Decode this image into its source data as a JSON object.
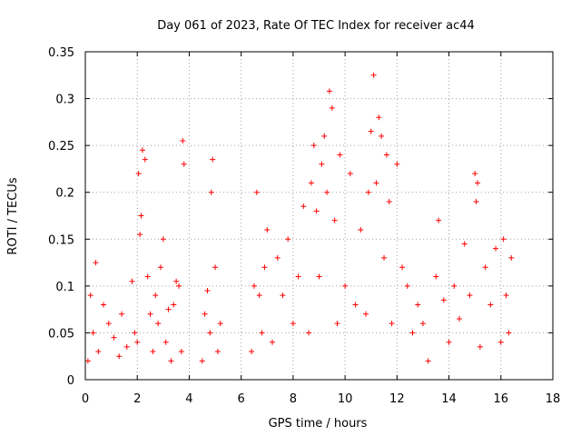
{
  "chart_data": {
    "type": "scatter",
    "title": "Day 061 of 2023, Rate Of TEC Index for receiver ac44",
    "xlabel": "GPS time / hours",
    "ylabel": "ROTI / TECUs",
    "xlim": [
      0,
      18
    ],
    "ylim": [
      0,
      0.35
    ],
    "x_ticks": [
      0,
      2,
      4,
      6,
      8,
      10,
      12,
      14,
      16,
      18
    ],
    "y_ticks": [
      0,
      0.05,
      0.1,
      0.15,
      0.2,
      0.25,
      0.3,
      0.35
    ],
    "x_tick_labels": [
      "0",
      "2",
      "4",
      "6",
      "8",
      "10",
      "12",
      "14",
      "16",
      "18"
    ],
    "y_tick_labels": [
      "0",
      "0.05",
      "0.1",
      "0.15",
      "0.2",
      "0.25",
      "0.3",
      "0.35"
    ],
    "grid": true,
    "marker": "+",
    "color": "#ff0000",
    "data_gaps_hours": [
      [
        3.9,
        4.4
      ],
      [
        5.3,
        6.3
      ]
    ],
    "series": [
      {
        "name": "ROTI",
        "x": [
          0.1,
          0.2,
          0.3,
          0.4,
          0.5,
          0.7,
          0.9,
          1.1,
          1.3,
          1.4,
          1.6,
          1.8,
          1.9,
          2.0,
          2.05,
          2.1,
          2.15,
          2.2,
          2.3,
          2.4,
          2.5,
          2.6,
          2.7,
          2.8,
          2.9,
          3.0,
          3.1,
          3.2,
          3.3,
          3.4,
          3.5,
          3.6,
          3.7,
          3.75,
          3.8,
          4.5,
          4.6,
          4.7,
          4.8,
          4.85,
          4.9,
          5.0,
          5.1,
          5.2,
          6.4,
          6.5,
          6.6,
          6.7,
          6.8,
          6.9,
          7.0,
          7.2,
          7.4,
          7.6,
          7.8,
          8.0,
          8.2,
          8.4,
          8.6,
          8.7,
          8.8,
          8.9,
          9.0,
          9.1,
          9.2,
          9.3,
          9.4,
          9.5,
          9.6,
          9.7,
          9.8,
          10.0,
          10.2,
          10.4,
          10.6,
          10.8,
          10.9,
          11.0,
          11.1,
          11.2,
          11.3,
          11.4,
          11.5,
          11.6,
          11.7,
          11.8,
          12.0,
          12.2,
          12.4,
          12.6,
          12.8,
          13.0,
          13.2,
          13.5,
          13.6,
          13.8,
          14.0,
          14.2,
          14.4,
          14.6,
          14.8,
          15.0,
          15.05,
          15.1,
          15.2,
          15.4,
          15.6,
          15.8,
          16.0,
          16.1,
          16.2,
          16.3,
          16.4
        ],
        "values": [
          0.02,
          0.09,
          0.05,
          0.125,
          0.03,
          0.08,
          0.06,
          0.045,
          0.025,
          0.07,
          0.035,
          0.105,
          0.05,
          0.04,
          0.22,
          0.155,
          0.175,
          0.245,
          0.235,
          0.11,
          0.07,
          0.03,
          0.09,
          0.06,
          0.12,
          0.15,
          0.04,
          0.075,
          0.02,
          0.08,
          0.105,
          0.1,
          0.03,
          0.255,
          0.23,
          0.02,
          0.07,
          0.095,
          0.05,
          0.2,
          0.235,
          0.12,
          0.03,
          0.06,
          0.03,
          0.1,
          0.2,
          0.09,
          0.05,
          0.12,
          0.16,
          0.04,
          0.13,
          0.09,
          0.15,
          0.06,
          0.11,
          0.185,
          0.05,
          0.21,
          0.25,
          0.18,
          0.11,
          0.23,
          0.26,
          0.2,
          0.308,
          0.29,
          0.17,
          0.06,
          0.24,
          0.1,
          0.22,
          0.08,
          0.16,
          0.07,
          0.2,
          0.265,
          0.325,
          0.21,
          0.28,
          0.26,
          0.13,
          0.24,
          0.19,
          0.06,
          0.23,
          0.12,
          0.1,
          0.05,
          0.08,
          0.06,
          0.02,
          0.11,
          0.17,
          0.085,
          0.04,
          0.1,
          0.065,
          0.145,
          0.09,
          0.22,
          0.19,
          0.21,
          0.035,
          0.12,
          0.08,
          0.14,
          0.04,
          0.15,
          0.09,
          0.05,
          0.13
        ]
      }
    ]
  }
}
